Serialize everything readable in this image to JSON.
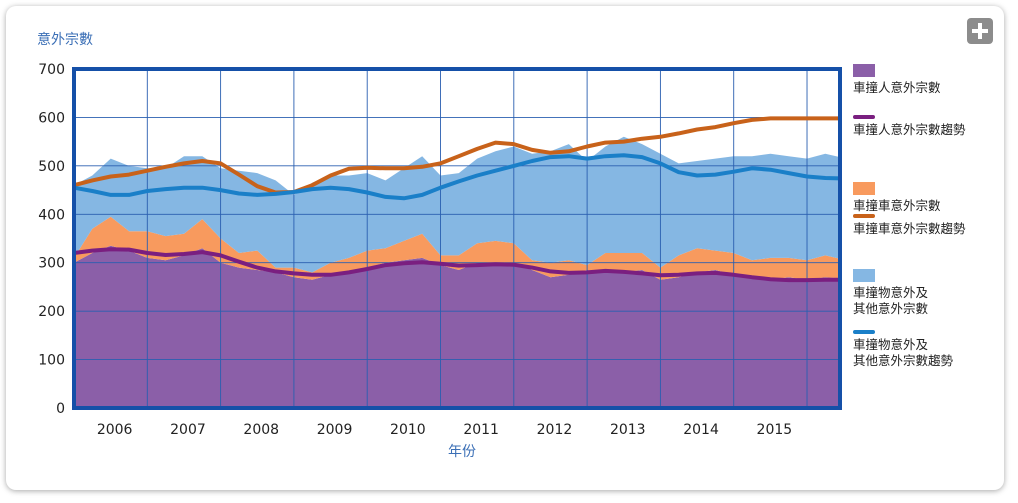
{
  "chart_data": {
    "type": "area",
    "title": "",
    "ylabel": "意外宗數",
    "xlabel": "年份",
    "ylim": [
      0,
      700
    ],
    "yticks": [
      0,
      100,
      200,
      300,
      400,
      500,
      600,
      700
    ],
    "xlim": [
      2005.5,
      2015.95
    ],
    "xticks": [
      {
        "label": "2006",
        "x": 2006.0
      },
      {
        "label": "2007",
        "x": 2007.0
      },
      {
        "label": "2008",
        "x": 2008.0
      },
      {
        "label": "2009",
        "x": 2009.0
      },
      {
        "label": "2010",
        "x": 2010.0
      },
      {
        "label": "2011",
        "x": 2011.0
      },
      {
        "label": "2012",
        "x": 2012.0
      },
      {
        "label": "2013",
        "x": 2013.0
      },
      {
        "label": "2014",
        "x": 2014.0
      },
      {
        "label": "2015",
        "x": 2015.0
      }
    ],
    "grid": true,
    "legend_position": "right",
    "stacked": true,
    "x": [
      2005.5,
      2005.75,
      2006.0,
      2006.25,
      2006.5,
      2006.75,
      2007.0,
      2007.25,
      2007.5,
      2007.75,
      2008.0,
      2008.25,
      2008.5,
      2008.75,
      2009.0,
      2009.25,
      2009.5,
      2009.75,
      2010.0,
      2010.25,
      2010.5,
      2010.75,
      2011.0,
      2011.25,
      2011.5,
      2011.75,
      2012.0,
      2012.25,
      2012.5,
      2012.75,
      2013.0,
      2013.25,
      2013.5,
      2013.75,
      2014.0,
      2014.25,
      2014.5,
      2014.75,
      2015.0,
      2015.25,
      2015.5,
      2015.75,
      2015.95
    ],
    "series": [
      {
        "name": "車撞人意外宗數",
        "kind": "area",
        "color": "#8b5fa8",
        "values": [
          300,
          320,
          335,
          325,
          310,
          305,
          315,
          330,
          300,
          290,
          285,
          280,
          270,
          265,
          275,
          280,
          290,
          300,
          305,
          310,
          295,
          285,
          300,
          295,
          300,
          285,
          270,
          275,
          285,
          280,
          280,
          285,
          265,
          270,
          280,
          285,
          275,
          270,
          265,
          270,
          265,
          270,
          268
        ]
      },
      {
        "name": "車撞人意外宗數趨勢",
        "kind": "line",
        "color": "#7a1f80",
        "values": [
          320,
          325,
          328,
          327,
          320,
          316,
          318,
          322,
          315,
          302,
          290,
          282,
          278,
          275,
          275,
          280,
          287,
          295,
          299,
          301,
          298,
          294,
          295,
          297,
          296,
          290,
          282,
          279,
          280,
          283,
          281,
          278,
          274,
          275,
          278,
          279,
          275,
          270,
          266,
          264,
          264,
          265,
          265
        ]
      },
      {
        "name": "車撞車意外宗數",
        "kind": "area",
        "color": "#f89a5e",
        "values": [
          10,
          50,
          60,
          40,
          55,
          50,
          45,
          60,
          50,
          30,
          40,
          10,
          20,
          15,
          25,
          30,
          35,
          30,
          40,
          50,
          20,
          30,
          40,
          50,
          40,
          20,
          30,
          30,
          10,
          40,
          40,
          35,
          25,
          45,
          50,
          40,
          45,
          35,
          45,
          40,
          40,
          45,
          40
        ]
      },
      {
        "name": "車撞車意外宗數趨勢",
        "kind": "line",
        "color": "#c8621a",
        "values": [
          460,
          470,
          478,
          482,
          490,
          498,
          505,
          510,
          505,
          482,
          458,
          445,
          446,
          460,
          480,
          494,
          496,
          495,
          495,
          498,
          505,
          520,
          535,
          548,
          545,
          533,
          527,
          530,
          540,
          548,
          550,
          556,
          560,
          567,
          575,
          580,
          588,
          595,
          598,
          598,
          598,
          598,
          598
        ]
      },
      {
        "name": "車撞物意外及\n其他意外宗數",
        "kind": "area",
        "color": "#85b7e3",
        "values": [
          150,
          110,
          120,
          135,
          130,
          140,
          160,
          130,
          145,
          170,
          160,
          180,
          150,
          185,
          180,
          170,
          160,
          140,
          150,
          160,
          165,
          170,
          175,
          185,
          200,
          220,
          230,
          240,
          215,
          220,
          240,
          225,
          235,
          190,
          180,
          190,
          200,
          215,
          215,
          210,
          210,
          210,
          210
        ]
      },
      {
        "name": "車撞物意外及\n其他意外宗數趨勢",
        "kind": "line",
        "color": "#1a7fc8",
        "values": [
          455,
          448,
          440,
          440,
          448,
          452,
          455,
          455,
          450,
          443,
          440,
          442,
          446,
          452,
          455,
          452,
          445,
          436,
          433,
          440,
          455,
          468,
          480,
          490,
          500,
          510,
          518,
          520,
          515,
          520,
          522,
          518,
          505,
          487,
          480,
          482,
          488,
          495,
          492,
          485,
          478,
          475,
          474
        ]
      }
    ]
  }
}
